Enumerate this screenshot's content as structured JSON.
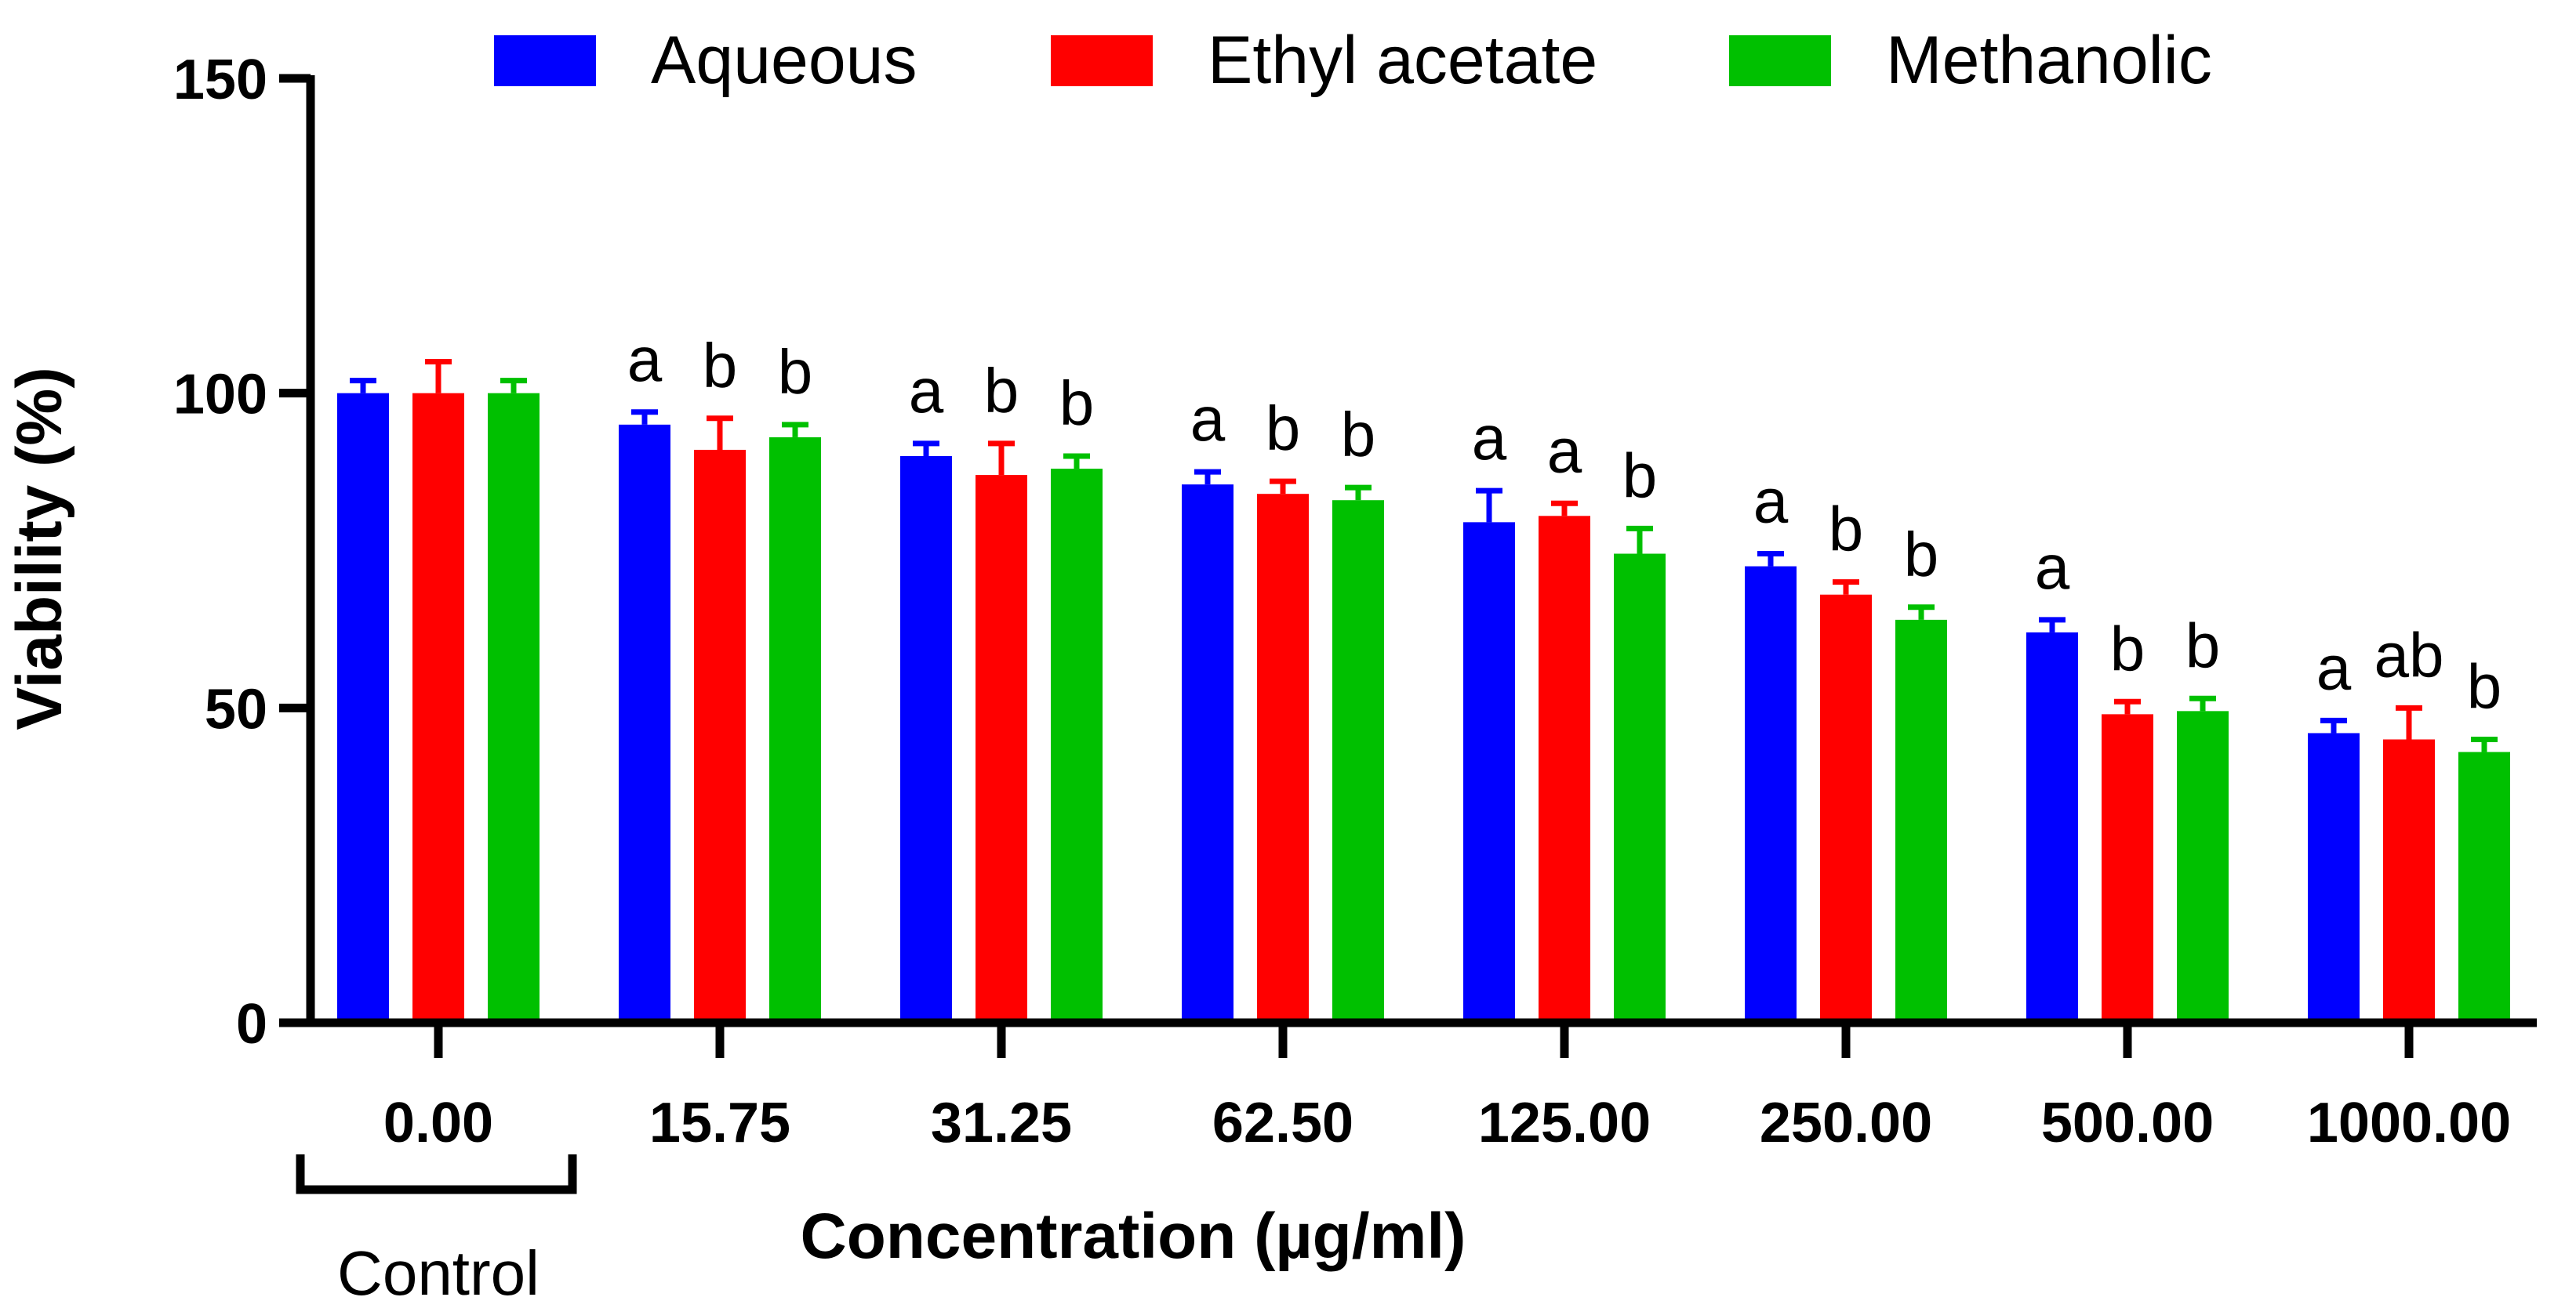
{
  "chart_data": {
    "type": "bar",
    "xlabel": "Concentration (µg/ml)",
    "ylabel": "Viability (%)",
    "ylim": [
      0,
      150
    ],
    "yticks": [
      0,
      50,
      100,
      150
    ],
    "categories": [
      "0.00",
      "15.75",
      "31.25",
      "62.50",
      "125.00",
      "250.00",
      "500.00",
      "1000.00"
    ],
    "control_label": "Control",
    "legend_position": "top",
    "series": [
      {
        "name": "Aqueous",
        "color": "#0000FF",
        "values": [
          100,
          95,
          90,
          85.5,
          79.5,
          72.5,
          62,
          46
        ],
        "errors": [
          2,
          2,
          2,
          2,
          5,
          2,
          2,
          2
        ],
        "labels": [
          "",
          "a",
          "a",
          "a",
          "a",
          "a",
          "a",
          "a"
        ]
      },
      {
        "name": "Ethyl acetate",
        "color": "#FF0000",
        "values": [
          100,
          91,
          87,
          84,
          80.5,
          68,
          49,
          45
        ],
        "errors": [
          5,
          5,
          5,
          2,
          2,
          2,
          2,
          5
        ],
        "labels": [
          "",
          "b",
          "b",
          "b",
          "a",
          "b",
          "b",
          "ab"
        ]
      },
      {
        "name": "Methanolic",
        "color": "#00C000",
        "values": [
          100,
          93,
          88,
          83,
          74.5,
          64,
          49.5,
          43
        ],
        "errors": [
          2,
          2,
          2,
          2,
          4,
          2,
          2,
          2
        ],
        "labels": [
          "",
          "b",
          "b",
          "b",
          "b",
          "b",
          "b",
          "b"
        ]
      }
    ]
  }
}
